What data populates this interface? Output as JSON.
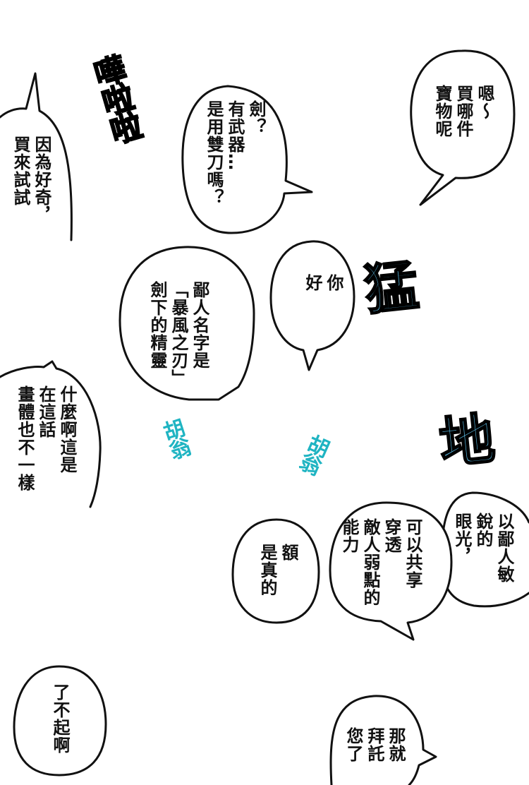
{
  "page": {
    "background": "#ffffff",
    "ink": "#111111"
  },
  "colors": {
    "sfx_orange": "#f49a1e",
    "sfx_blue": "#5bbde6",
    "sfx_teal": "#1fb4c2"
  },
  "bubbles": [
    {
      "id": "curious",
      "text": "因為好奇，\n買來試試"
    },
    {
      "id": "sword",
      "text": "劍？\n有武器…\n是用雙刀嗎？"
    },
    {
      "id": "which",
      "text": "嗯～\n買哪件\n寶物呢"
    },
    {
      "id": "hello",
      "text": "你\n好"
    },
    {
      "id": "name",
      "text": "鄙人名字是\n「暴風之刃」\n劍下的精靈"
    },
    {
      "id": "what",
      "text": "什麼啊這是\n在這話\n畫體也不一樣"
    },
    {
      "id": "eyes",
      "text": "以鄙人敏\n銳的\n眼光，"
    },
    {
      "id": "share",
      "text": "可以共享\n穿透\n敵人弱點的\n能力"
    },
    {
      "id": "really",
      "text": "額\n是真的"
    },
    {
      "id": "amazing",
      "text": "了不起啊"
    },
    {
      "id": "please",
      "text": "那就\n拜託\n您了"
    }
  ],
  "sfx": {
    "crash": "嘩啦啦",
    "fierce": "猛",
    "ground": "地",
    "mumble1": "胡翁",
    "mumble2": "胡翁"
  }
}
